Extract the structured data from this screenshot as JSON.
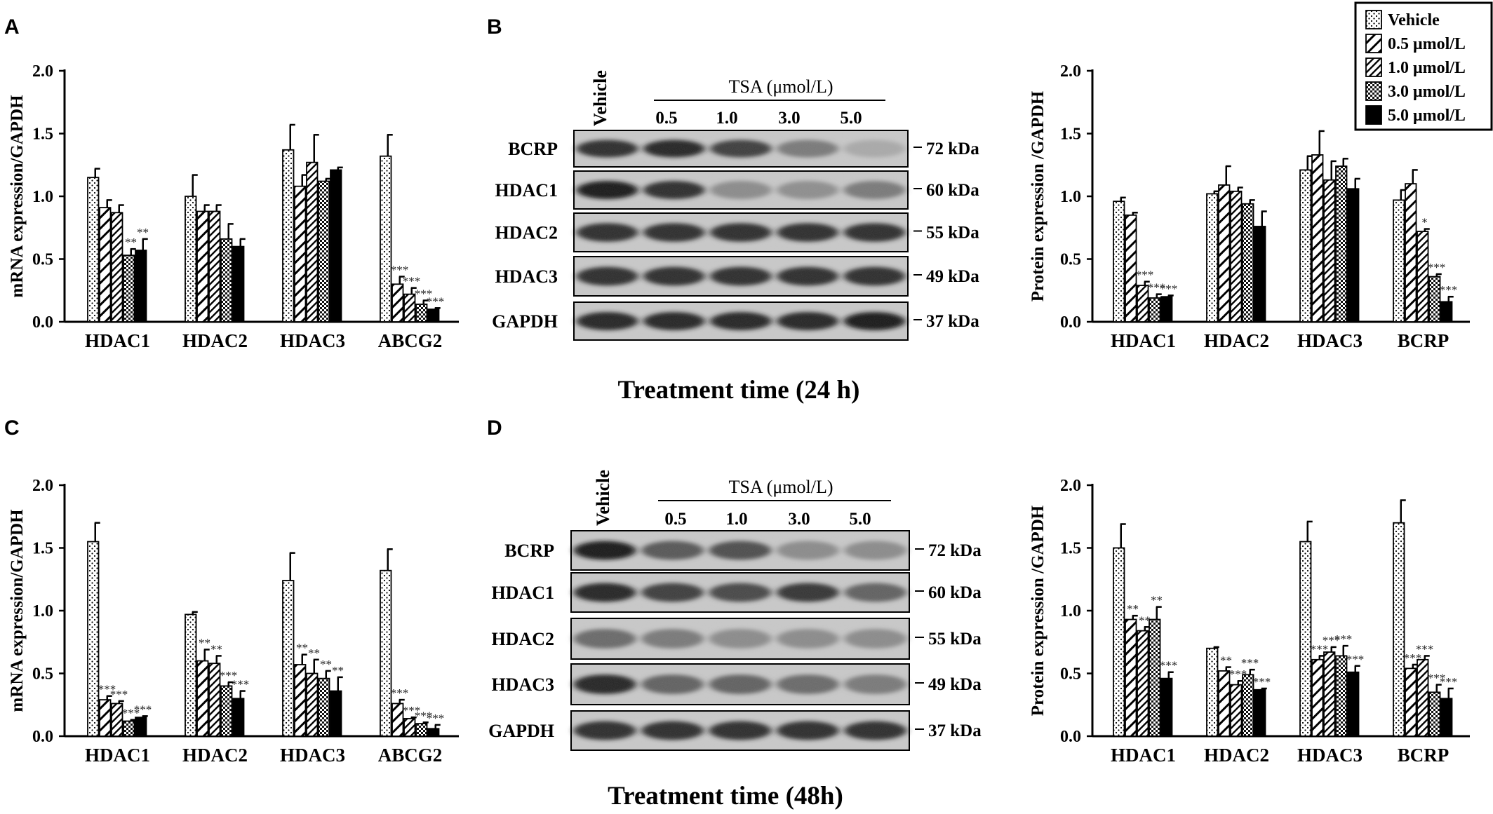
{
  "legend": [
    {
      "label": "Vehicle",
      "pattern": "dots"
    },
    {
      "label": "0.5 μmol/L",
      "pattern": "hatch-sparse"
    },
    {
      "label": "1.0 μmol/L",
      "pattern": "hatch-dense"
    },
    {
      "label": "3.0 μmol/L",
      "pattern": "checker"
    },
    {
      "label": "5.0 μmol/L",
      "pattern": "solid"
    }
  ],
  "blots": [
    {
      "label": "B",
      "vehicle_label": "Vehicle",
      "tsa_label": "TSA (μmol/L)",
      "doses": [
        "0.5",
        "1.0",
        "3.0",
        "5.0"
      ],
      "title": "Treatment time (24 h)",
      "rows": [
        {
          "name": "BCRP",
          "kda": "72 kDa",
          "intensity": [
            0.85,
            0.9,
            0.75,
            0.4,
            0.12
          ]
        },
        {
          "name": "HDAC1",
          "kda": "60 kDa",
          "intensity": [
            0.95,
            0.85,
            0.3,
            0.28,
            0.4
          ]
        },
        {
          "name": "HDAC2",
          "kda": "55 kDa",
          "intensity": [
            0.85,
            0.85,
            0.85,
            0.85,
            0.85
          ]
        },
        {
          "name": "HDAC3",
          "kda": "49 kDa",
          "intensity": [
            0.85,
            0.85,
            0.85,
            0.85,
            0.85
          ]
        },
        {
          "name": "GAPDH",
          "kda": "37 kDa",
          "intensity": [
            0.9,
            0.9,
            0.9,
            0.9,
            0.95
          ]
        }
      ]
    },
    {
      "label": "D",
      "vehicle_label": "Vehicle",
      "tsa_label": "TSA (μmol/L)",
      "doses": [
        "0.5",
        "1.0",
        "3.0",
        "5.0"
      ],
      "title": "Treatment time (48h)",
      "rows": [
        {
          "name": "BCRP",
          "kda": "72 kDa",
          "intensity": [
            0.95,
            0.6,
            0.65,
            0.3,
            0.3
          ]
        },
        {
          "name": "HDAC1",
          "kda": "60 kDa",
          "intensity": [
            0.9,
            0.75,
            0.7,
            0.8,
            0.55
          ]
        },
        {
          "name": "HDAC2",
          "kda": "55 kDa",
          "intensity": [
            0.5,
            0.4,
            0.3,
            0.3,
            0.3
          ]
        },
        {
          "name": "HDAC3",
          "kda": "49 kDa",
          "intensity": [
            0.9,
            0.55,
            0.55,
            0.5,
            0.4
          ]
        },
        {
          "name": "GAPDH",
          "kda": "37 kDa",
          "intensity": [
            0.85,
            0.85,
            0.85,
            0.85,
            0.85
          ]
        }
      ]
    }
  ],
  "chart_data": [
    {
      "panel": "A",
      "type": "bar",
      "ylabel": "mRNA expression/GAPDH",
      "ylim": [
        0,
        2.0
      ],
      "yticks": [
        "0.0",
        "0.5",
        "1.0",
        "1.5",
        "2.0"
      ],
      "categories": [
        "HDAC1",
        "HDAC2",
        "HDAC3",
        "ABCG2"
      ],
      "series": [
        {
          "values": [
            1.15,
            1.0,
            1.37,
            1.32
          ],
          "errors": [
            0.07,
            0.17,
            0.2,
            0.17
          ],
          "sig": [
            "",
            "",
            "",
            ""
          ]
        },
        {
          "values": [
            0.91,
            0.88,
            1.08,
            0.3
          ],
          "errors": [
            0.06,
            0.05,
            0.09,
            0.06
          ],
          "sig": [
            "",
            "",
            "",
            "***"
          ]
        },
        {
          "values": [
            0.87,
            0.88,
            1.27,
            0.22
          ],
          "errors": [
            0.06,
            0.05,
            0.22,
            0.05
          ],
          "sig": [
            "",
            "",
            "",
            "***"
          ]
        },
        {
          "values": [
            0.53,
            0.66,
            1.12,
            0.14
          ],
          "errors": [
            0.05,
            0.12,
            0.02,
            0.03
          ],
          "sig": [
            "**",
            "",
            "",
            "***"
          ]
        },
        {
          "values": [
            0.57,
            0.6,
            1.21,
            0.1
          ],
          "errors": [
            0.09,
            0.06,
            0.02,
            0.01
          ],
          "sig": [
            "**",
            "",
            "",
            "***"
          ]
        }
      ]
    },
    {
      "panel": "B",
      "type": "bar",
      "ylabel": "Protein expression /GAPDH",
      "ylim": [
        0,
        2.0
      ],
      "yticks": [
        "0.0",
        "0.5",
        "1.0",
        "1.5",
        "2.0"
      ],
      "categories": [
        "HDAC1",
        "HDAC2",
        "HDAC3",
        "BCRP"
      ],
      "series": [
        {
          "values": [
            0.96,
            1.02,
            1.21,
            0.97
          ],
          "errors": [
            0.03,
            0.02,
            0.11,
            0.08
          ],
          "sig": [
            "",
            "",
            "",
            ""
          ]
        },
        {
          "values": [
            0.85,
            1.09,
            1.33,
            1.1
          ],
          "errors": [
            0.02,
            0.15,
            0.19,
            0.11
          ],
          "sig": [
            "",
            "",
            "",
            ""
          ]
        },
        {
          "values": [
            0.29,
            1.04,
            1.13,
            0.72
          ],
          "errors": [
            0.03,
            0.03,
            0.15,
            0.02
          ],
          "sig": [
            "***",
            "",
            "",
            "*"
          ]
        },
        {
          "values": [
            0.19,
            0.94,
            1.24,
            0.36
          ],
          "errors": [
            0.03,
            0.03,
            0.06,
            0.02
          ],
          "sig": [
            "***",
            "",
            "",
            "***"
          ]
        },
        {
          "values": [
            0.2,
            0.76,
            1.06,
            0.16
          ],
          "errors": [
            0.01,
            0.12,
            0.08,
            0.04
          ],
          "sig": [
            "***",
            "",
            "",
            "***"
          ]
        }
      ]
    },
    {
      "panel": "C",
      "type": "bar",
      "ylabel": "mRNA expression/GAPDH",
      "ylim": [
        0,
        2.0
      ],
      "yticks": [
        "0.0",
        "0.5",
        "1.0",
        "1.5",
        "2.0"
      ],
      "categories": [
        "HDAC1",
        "HDAC2",
        "HDAC3",
        "ABCG2"
      ],
      "series": [
        {
          "values": [
            1.55,
            0.97,
            1.24,
            1.32
          ],
          "errors": [
            0.15,
            0.02,
            0.22,
            0.17
          ],
          "sig": [
            "",
            "",
            "",
            ""
          ]
        },
        {
          "values": [
            0.29,
            0.6,
            0.57,
            0.26
          ],
          "errors": [
            0.03,
            0.09,
            0.08,
            0.03
          ],
          "sig": [
            "***",
            "**",
            "**",
            "***"
          ]
        },
        {
          "values": [
            0.26,
            0.58,
            0.5,
            0.14
          ],
          "errors": [
            0.02,
            0.06,
            0.11,
            0.01
          ],
          "sig": [
            "***",
            "**",
            "**",
            "***"
          ]
        },
        {
          "values": [
            0.12,
            0.4,
            0.46,
            0.1
          ],
          "errors": [
            0.01,
            0.03,
            0.06,
            0.01
          ],
          "sig": [
            "***",
            "***",
            "**",
            "***"
          ]
        },
        {
          "values": [
            0.15,
            0.3,
            0.36,
            0.06
          ],
          "errors": [
            0.01,
            0.06,
            0.11,
            0.03
          ],
          "sig": [
            "***",
            "***",
            "**",
            "***"
          ]
        }
      ]
    },
    {
      "panel": "D",
      "type": "bar",
      "ylabel": "Protein expression /GAPDH",
      "ylim": [
        0,
        2.0
      ],
      "yticks": [
        "0.0",
        "0.5",
        "1.0",
        "1.5",
        "2.0"
      ],
      "categories": [
        "HDAC1",
        "HDAC2",
        "HDAC3",
        "BCRP"
      ],
      "series": [
        {
          "values": [
            1.5,
            0.7,
            1.55,
            1.7
          ],
          "errors": [
            0.19,
            0.01,
            0.16,
            0.18
          ],
          "sig": [
            "",
            "",
            "",
            ""
          ]
        },
        {
          "values": [
            0.93,
            0.52,
            0.61,
            0.54
          ],
          "errors": [
            0.03,
            0.03,
            0.03,
            0.03
          ],
          "sig": [
            "**",
            "**",
            "***",
            "***"
          ]
        },
        {
          "values": [
            0.84,
            0.41,
            0.67,
            0.61
          ],
          "errors": [
            0.03,
            0.03,
            0.04,
            0.03
          ],
          "sig": [
            "**",
            "***",
            "***",
            "***"
          ]
        },
        {
          "values": [
            0.93,
            0.49,
            0.64,
            0.35
          ],
          "errors": [
            0.1,
            0.04,
            0.08,
            0.06
          ],
          "sig": [
            "**",
            "***",
            "***",
            "***"
          ]
        },
        {
          "values": [
            0.46,
            0.37,
            0.51,
            0.3
          ],
          "errors": [
            0.05,
            0.01,
            0.05,
            0.08
          ],
          "sig": [
            "***",
            "***",
            "***",
            "***"
          ]
        }
      ]
    }
  ]
}
